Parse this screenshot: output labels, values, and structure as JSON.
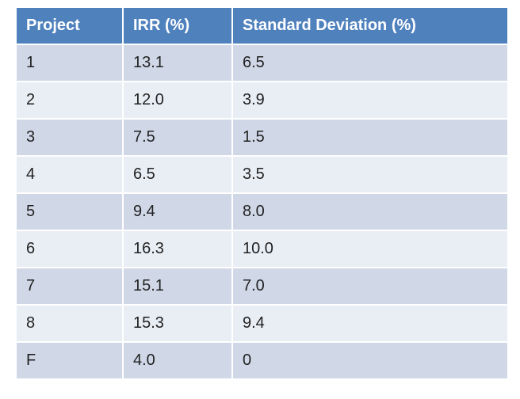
{
  "table": {
    "headers": [
      "Project",
      "IRR (%)",
      "Standard Deviation (%)"
    ],
    "rows": [
      [
        "1",
        "13.1",
        "6.5"
      ],
      [
        "2",
        "12.0",
        "3.9"
      ],
      [
        "3",
        "7.5",
        "1.5"
      ],
      [
        "4",
        "6.5",
        "3.5"
      ],
      [
        "5",
        "9.4",
        "8.0"
      ],
      [
        "6",
        "16.3",
        "10.0"
      ],
      [
        "7",
        "15.1",
        "7.0"
      ],
      [
        "8",
        "15.3",
        "9.4"
      ],
      [
        "F",
        "4.0",
        "0"
      ]
    ]
  },
  "colors": {
    "header_bg": "#4f81bd",
    "row_odd_bg": "#d0d8e8",
    "row_even_bg": "#e9edf4",
    "header_text": "#ffffff"
  }
}
